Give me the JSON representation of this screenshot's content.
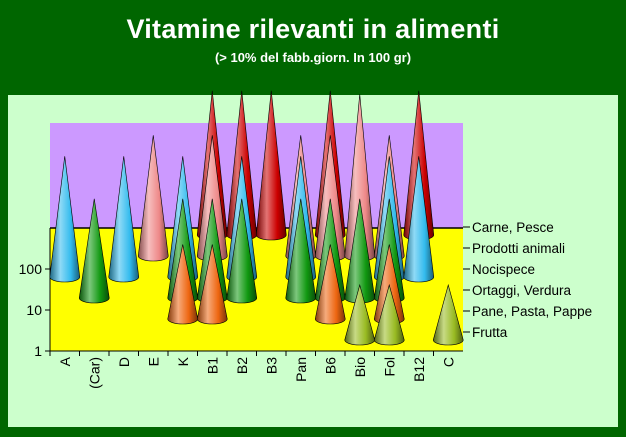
{
  "title": "Vitamine rilevanti in alimenti",
  "subtitle": "(> 10% del fabb.giorn. In 100 gr)",
  "chart_data": {
    "type": "bar",
    "shape": "cone",
    "log_scale": true,
    "categories": [
      "A",
      "(Car)",
      "D",
      "E",
      "K",
      "B1",
      "B2",
      "B3",
      "Pan",
      "B6",
      "Bio",
      "Fol",
      "B12",
      "C"
    ],
    "yticks": [
      "1",
      "10",
      "100"
    ],
    "series": [
      {
        "name": "Carne, Pesce",
        "color": "#cc0000",
        "values": [
          null,
          null,
          null,
          null,
          null,
          150,
          150,
          150,
          null,
          150,
          null,
          null,
          150,
          null
        ]
      },
      {
        "name": "Prodotti animali",
        "color": "#ee8888",
        "values": [
          null,
          null,
          null,
          40,
          null,
          40,
          null,
          null,
          40,
          40,
          400,
          40,
          null,
          null
        ]
      },
      {
        "name": "Nocispece",
        "color": "#33bbee",
        "values": [
          40,
          null,
          40,
          null,
          40,
          null,
          40,
          null,
          40,
          null,
          null,
          40,
          40,
          null
        ]
      },
      {
        "name": "Ortaggi, Verdura",
        "color": "#119911",
        "values": [
          null,
          12,
          null,
          null,
          12,
          12,
          12,
          null,
          12,
          12,
          12,
          12,
          null,
          null
        ]
      },
      {
        "name": "Pane, Pasta, Pappe",
        "color": "#ee6611",
        "values": [
          null,
          null,
          null,
          null,
          3,
          3,
          null,
          null,
          null,
          3,
          null,
          3,
          null,
          null
        ]
      },
      {
        "name": "Frutta",
        "color": "#99bb22",
        "values": [
          null,
          null,
          null,
          null,
          null,
          null,
          null,
          null,
          null,
          null,
          1,
          1,
          null,
          1
        ]
      }
    ],
    "legend_position": "right"
  },
  "colors": {
    "background": "#006600",
    "panel": "#ccffcc",
    "plot_upper": "#cc99ff",
    "plot_lower": "#ffff00"
  }
}
